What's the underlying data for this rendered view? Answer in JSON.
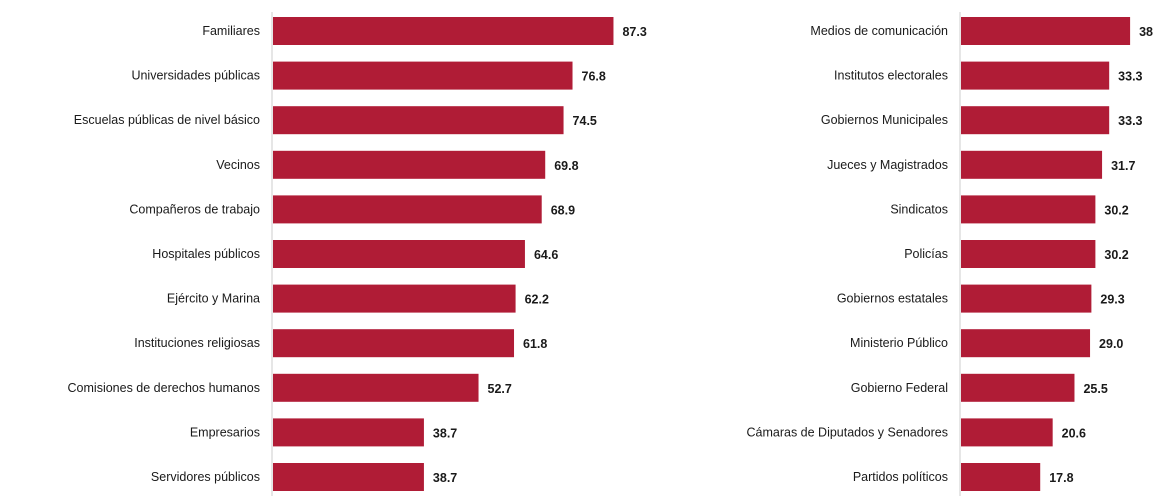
{
  "colors": {
    "bar": "#b01c36",
    "axis": "#cccccc",
    "text": "#1a1a1a"
  },
  "chart_data": [
    {
      "type": "bar",
      "orientation": "horizontal",
      "categories": [
        "Familiares",
        "Universidades públicas",
        "Escuelas públicas de nivel básico",
        "Vecinos",
        "Compañeros de trabajo",
        "Hospitales públicos",
        "Ejército y Marina",
        "Instituciones religiosas",
        "Comisiones de derechos humanos",
        "Empresarios",
        "Servidores públicos"
      ],
      "values": [
        87.3,
        76.8,
        74.5,
        69.8,
        68.9,
        64.6,
        62.2,
        61.8,
        52.7,
        38.7,
        38.7
      ],
      "value_labels": [
        "87.3",
        "76.8",
        "74.5",
        "69.8",
        "68.9",
        "64.6",
        "62.2",
        "61.8",
        "52.7",
        "38.7",
        "38.7"
      ],
      "title": "",
      "xlabel": "",
      "ylabel": "",
      "xlim": [
        0,
        100
      ],
      "grid": false,
      "legend": "none"
    },
    {
      "type": "bar",
      "orientation": "horizontal",
      "categories": [
        "Medios de comunicación",
        "Institutos electorales",
        "Gobiernos Municipales",
        "Jueces y Magistrados",
        "Sindicatos",
        "Policías",
        "Gobiernos estatales",
        "Ministerio Público",
        "Gobierno Federal",
        "Cámaras de Diputados y Senadores",
        "Partidos políticos"
      ],
      "values": [
        38,
        33.3,
        33.3,
        31.7,
        30.2,
        30.2,
        29.3,
        29.0,
        25.5,
        20.6,
        17.8
      ],
      "value_labels": [
        "38",
        "33.3",
        "33.3",
        "31.7",
        "30.2",
        "30.2",
        "29.3",
        "29.0",
        "25.5",
        "20.6",
        "17.8"
      ],
      "title": "",
      "xlabel": "",
      "ylabel": "",
      "xlim": [
        0,
        100
      ],
      "grid": false,
      "legend": "none"
    }
  ]
}
